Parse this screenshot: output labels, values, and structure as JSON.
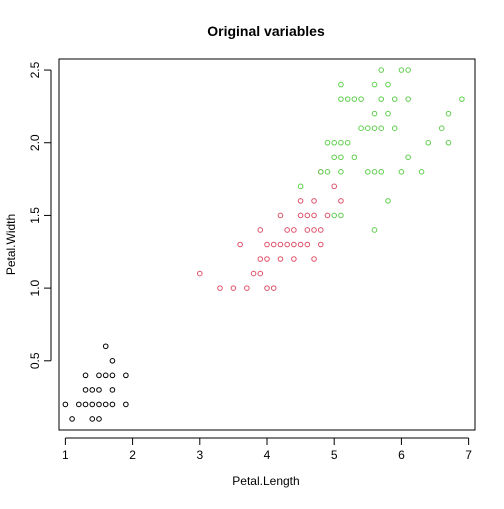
{
  "chart_data": {
    "type": "scatter",
    "title": "Original variables",
    "xlabel": "Petal.Length",
    "ylabel": "Petal.Width",
    "xlim": [
      0.905,
      7.095
    ],
    "ylim": [
      0.024,
      2.576
    ],
    "xticks": [
      1,
      2,
      3,
      4,
      5,
      6,
      7
    ],
    "yticks": [
      0.5,
      1.0,
      1.5,
      2.0,
      2.5
    ],
    "xtick_labels": [
      "1",
      "2",
      "3",
      "4",
      "5",
      "6",
      "7"
    ],
    "ytick_labels": [
      "0.5",
      "1.0",
      "1.5",
      "2.0",
      "2.5"
    ],
    "grid": false,
    "legend": "none",
    "series": [
      {
        "color": "#000000",
        "points": [
          [
            1.0,
            0.2
          ],
          [
            1.1,
            0.1
          ],
          [
            1.2,
            0.2
          ],
          [
            1.3,
            0.2
          ],
          [
            1.3,
            0.3
          ],
          [
            1.3,
            0.4
          ],
          [
            1.4,
            0.1
          ],
          [
            1.4,
            0.2
          ],
          [
            1.4,
            0.3
          ],
          [
            1.5,
            0.1
          ],
          [
            1.5,
            0.2
          ],
          [
            1.5,
            0.3
          ],
          [
            1.5,
            0.4
          ],
          [
            1.6,
            0.2
          ],
          [
            1.6,
            0.4
          ],
          [
            1.6,
            0.6
          ],
          [
            1.7,
            0.2
          ],
          [
            1.7,
            0.3
          ],
          [
            1.7,
            0.4
          ],
          [
            1.7,
            0.5
          ],
          [
            1.9,
            0.2
          ],
          [
            1.9,
            0.4
          ]
        ]
      },
      {
        "color": "#DF536B",
        "points": [
          [
            3.0,
            1.1
          ],
          [
            3.3,
            1.0
          ],
          [
            3.5,
            1.0
          ],
          [
            3.6,
            1.3
          ],
          [
            3.7,
            1.0
          ],
          [
            3.8,
            1.1
          ],
          [
            3.9,
            1.1
          ],
          [
            3.9,
            1.2
          ],
          [
            3.9,
            1.4
          ],
          [
            4.0,
            1.0
          ],
          [
            4.0,
            1.2
          ],
          [
            4.0,
            1.3
          ],
          [
            4.1,
            1.0
          ],
          [
            4.1,
            1.3
          ],
          [
            4.2,
            1.2
          ],
          [
            4.2,
            1.3
          ],
          [
            4.2,
            1.5
          ],
          [
            4.3,
            1.3
          ],
          [
            4.4,
            1.2
          ],
          [
            4.4,
            1.3
          ],
          [
            4.4,
            1.4
          ],
          [
            4.5,
            1.3
          ],
          [
            4.5,
            1.5
          ],
          [
            4.5,
            1.6
          ],
          [
            4.6,
            1.3
          ],
          [
            4.6,
            1.4
          ],
          [
            4.6,
            1.5
          ],
          [
            4.7,
            1.2
          ],
          [
            4.7,
            1.4
          ],
          [
            4.7,
            1.5
          ],
          [
            4.7,
            1.6
          ],
          [
            4.8,
            1.4
          ],
          [
            4.8,
            1.8
          ],
          [
            4.9,
            1.5
          ],
          [
            5.0,
            1.7
          ],
          [
            5.1,
            1.6
          ],
          [
            4.8,
            1.3
          ],
          [
            4.3,
            1.4
          ]
        ]
      },
      {
        "color": "#61D04F",
        "points": [
          [
            4.5,
            1.7
          ],
          [
            4.8,
            1.8
          ],
          [
            4.9,
            1.8
          ],
          [
            4.9,
            2.0
          ],
          [
            5.0,
            1.5
          ],
          [
            5.0,
            2.0
          ],
          [
            5.1,
            1.5
          ],
          [
            5.1,
            1.8
          ],
          [
            5.1,
            1.9
          ],
          [
            5.1,
            2.0
          ],
          [
            5.1,
            2.3
          ],
          [
            5.1,
            2.4
          ],
          [
            5.2,
            2.0
          ],
          [
            5.2,
            2.3
          ],
          [
            5.3,
            1.9
          ],
          [
            5.3,
            2.3
          ],
          [
            5.4,
            2.1
          ],
          [
            5.4,
            2.3
          ],
          [
            5.5,
            1.8
          ],
          [
            5.5,
            2.1
          ],
          [
            5.6,
            1.4
          ],
          [
            5.6,
            1.8
          ],
          [
            5.6,
            2.1
          ],
          [
            5.6,
            2.2
          ],
          [
            5.6,
            2.4
          ],
          [
            5.7,
            2.1
          ],
          [
            5.7,
            2.3
          ],
          [
            5.7,
            2.5
          ],
          [
            5.8,
            1.6
          ],
          [
            5.8,
            2.2
          ],
          [
            5.8,
            2.4
          ],
          [
            5.9,
            2.1
          ],
          [
            5.9,
            2.3
          ],
          [
            6.0,
            1.8
          ],
          [
            6.0,
            2.5
          ],
          [
            6.1,
            1.9
          ],
          [
            6.1,
            2.3
          ],
          [
            6.1,
            2.5
          ],
          [
            6.3,
            1.8
          ],
          [
            6.4,
            2.0
          ],
          [
            6.6,
            2.1
          ],
          [
            6.7,
            2.0
          ],
          [
            6.7,
            2.2
          ],
          [
            6.9,
            2.3
          ],
          [
            5.0,
            1.9
          ],
          [
            5.7,
            1.8
          ]
        ]
      }
    ]
  }
}
